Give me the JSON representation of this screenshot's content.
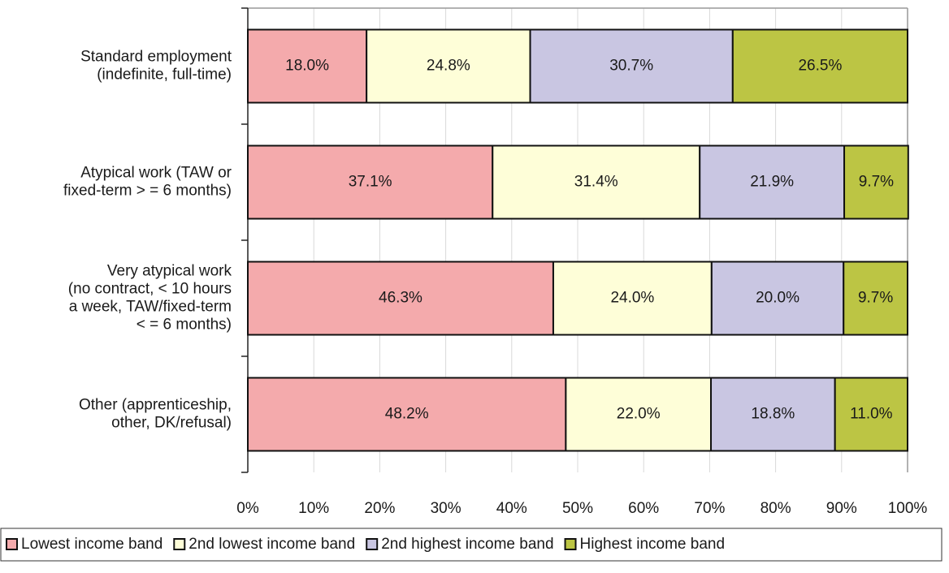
{
  "chart_data": {
    "type": "stacked_bar_horizontal",
    "categories": [
      [
        "Standard employment",
        "(indefinite, full-time)"
      ],
      [
        "Atypical work (TAW or",
        "fixed-term > = 6 months)"
      ],
      [
        "Very atypical work",
        "(no contract, < 10 hours",
        "a week, TAW/fixed-term",
        "< = 6 months)"
      ],
      [
        "Other (apprenticeship,",
        "other, DK/refusal)"
      ]
    ],
    "series": [
      {
        "name": "Lowest income band",
        "color": "#f4aaac",
        "values": [
          18.0,
          37.1,
          46.3,
          48.2
        ],
        "value_labels": [
          "18.0%",
          "37.1%",
          "46.3%",
          "48.2%"
        ]
      },
      {
        "name": "2nd lowest income band",
        "color": "#fefed8",
        "values": [
          24.8,
          31.4,
          24.0,
          22.0
        ],
        "value_labels": [
          "24.8%",
          "31.4%",
          "24.0%",
          "22.0%"
        ]
      },
      {
        "name": "2nd highest income band",
        "color": "#c9c6e2",
        "values": [
          30.7,
          21.9,
          20.0,
          18.8
        ],
        "value_labels": [
          "30.7%",
          "21.9%",
          "20.0%",
          "18.8%"
        ]
      },
      {
        "name": "Highest income band",
        "color": "#bcc544",
        "values": [
          26.5,
          9.7,
          9.7,
          11.0
        ],
        "value_labels": [
          "26.5%",
          "9.7%",
          "9.7%",
          "11.0%"
        ]
      }
    ],
    "xlim": [
      0,
      100
    ],
    "xticks": [
      {
        "value": 0,
        "label": "0%"
      },
      {
        "value": 10,
        "label": "10%"
      },
      {
        "value": 20,
        "label": "20%"
      },
      {
        "value": 30,
        "label": "30%"
      },
      {
        "value": 40,
        "label": "40%"
      },
      {
        "value": 50,
        "label": "50%"
      },
      {
        "value": 60,
        "label": "60%"
      },
      {
        "value": 70,
        "label": "70%"
      },
      {
        "value": 80,
        "label": "80%"
      },
      {
        "value": 90,
        "label": "90%"
      },
      {
        "value": 100,
        "label": "100%"
      }
    ],
    "grid": true,
    "legend": "bottom"
  }
}
